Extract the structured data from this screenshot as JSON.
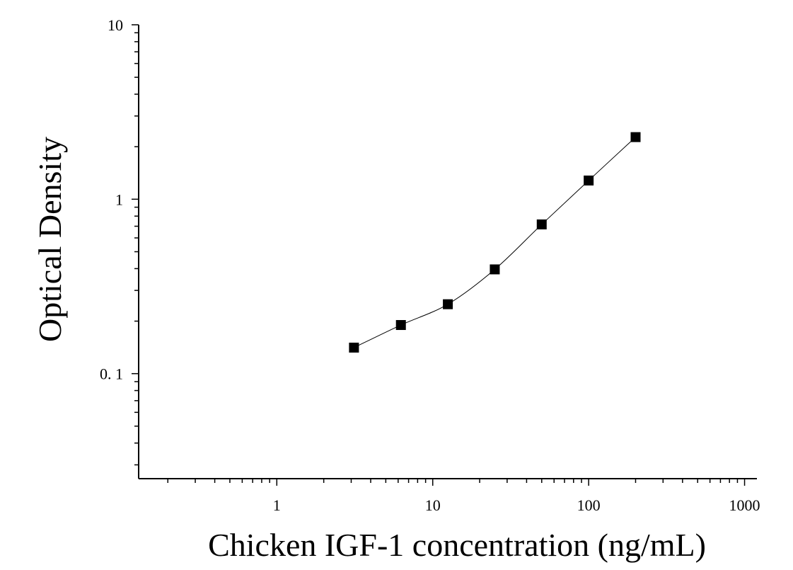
{
  "chart_data": {
    "type": "scatter",
    "title": "",
    "xlabel": "Chicken IGF-1 concentration (ng/mL)",
    "ylabel": "Optical Density",
    "x_scale": "log",
    "y_scale": "log",
    "xlim": [
      0.13,
      1200
    ],
    "ylim": [
      0.025,
      10
    ],
    "x_ticks": [
      {
        "value": 1,
        "label": "1"
      },
      {
        "value": 10,
        "label": "10"
      },
      {
        "value": 100,
        "label": "100"
      },
      {
        "value": 1000,
        "label": "1000"
      }
    ],
    "y_ticks": [
      {
        "value": 0.1,
        "label": "0. 1"
      },
      {
        "value": 1,
        "label": "1"
      },
      {
        "value": 10,
        "label": "10"
      }
    ],
    "grid": false,
    "legend": "none",
    "marker": "square",
    "color": "#000000",
    "series": [
      {
        "x": [
          3.125,
          6.25,
          12.5,
          25,
          50,
          100,
          200
        ],
        "y": [
          0.141,
          0.19,
          0.25,
          0.396,
          0.717,
          1.28,
          2.27
        ]
      }
    ]
  }
}
